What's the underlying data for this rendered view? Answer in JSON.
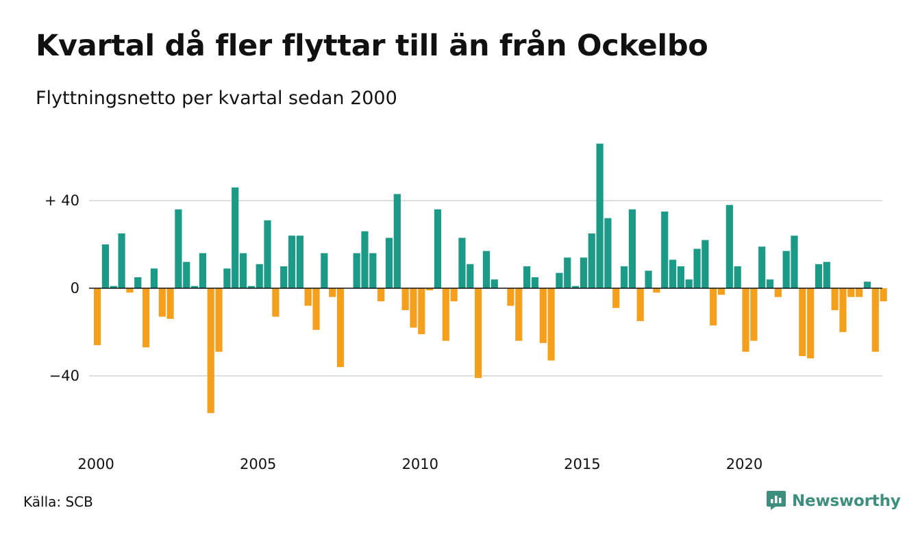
{
  "header": {
    "title": "Kvartal då fler flyttar till än från Ockelbo",
    "subtitle": "Flyttningsnetto per kvartal sedan 2000"
  },
  "footer": {
    "source": "Källa: SCB",
    "brand": "Newsworthy",
    "brand_icon": "newsworthy-logo-icon"
  },
  "colors": {
    "positive": "#1b9a87",
    "negative": "#f5a01d",
    "grid": "#dddddd",
    "text": "#111111",
    "brand": "#3c8f7c"
  },
  "chart_data": {
    "type": "bar",
    "title": "Kvartal då fler flyttar till än från Ockelbo",
    "subtitle": "Flyttningsnetto per kvartal sedan 2000",
    "x_start": "2000 Q1",
    "x_tick_labels": [
      "2000",
      "2005",
      "2010",
      "2015",
      "2020"
    ],
    "y_ticks": [
      40,
      0,
      -40
    ],
    "y_tick_labels": [
      "+ 40",
      "0",
      "−40"
    ],
    "ylim": [
      -70,
      75
    ],
    "grid": true,
    "legend": "none",
    "categories": [
      "2000 Q1",
      "2000 Q2",
      "2000 Q3",
      "2000 Q4",
      "2001 Q1",
      "2001 Q2",
      "2001 Q3",
      "2001 Q4",
      "2002 Q1",
      "2002 Q2",
      "2002 Q3",
      "2002 Q4",
      "2003 Q1",
      "2003 Q2",
      "2003 Q3",
      "2003 Q4",
      "2004 Q1",
      "2004 Q2",
      "2004 Q3",
      "2004 Q4",
      "2005 Q1",
      "2005 Q2",
      "2005 Q3",
      "2005 Q4",
      "2006 Q1",
      "2006 Q2",
      "2006 Q3",
      "2006 Q4",
      "2007 Q1",
      "2007 Q2",
      "2007 Q3",
      "2007 Q4",
      "2008 Q1",
      "2008 Q2",
      "2008 Q3",
      "2008 Q4",
      "2009 Q1",
      "2009 Q2",
      "2009 Q3",
      "2009 Q4",
      "2010 Q1",
      "2010 Q2",
      "2010 Q3",
      "2010 Q4",
      "2011 Q1",
      "2011 Q2",
      "2011 Q3",
      "2011 Q4",
      "2012 Q1",
      "2012 Q2",
      "2012 Q3",
      "2012 Q4",
      "2013 Q1",
      "2013 Q2",
      "2013 Q3",
      "2013 Q4",
      "2014 Q1",
      "2014 Q2",
      "2014 Q3",
      "2014 Q4",
      "2015 Q1",
      "2015 Q2",
      "2015 Q3",
      "2015 Q4",
      "2016 Q1",
      "2016 Q2",
      "2016 Q3",
      "2016 Q4",
      "2017 Q1",
      "2017 Q2",
      "2017 Q3",
      "2017 Q4",
      "2018 Q1",
      "2018 Q2",
      "2018 Q3",
      "2018 Q4",
      "2019 Q1",
      "2019 Q2",
      "2019 Q3",
      "2019 Q4",
      "2020 Q1",
      "2020 Q2",
      "2020 Q3",
      "2020 Q4",
      "2021 Q1",
      "2021 Q2",
      "2021 Q3",
      "2021 Q4",
      "2022 Q1",
      "2022 Q2",
      "2022 Q3",
      "2022 Q4",
      "2023 Q1",
      "2023 Q2",
      "2023 Q3",
      "2023 Q4",
      "2024 Q1",
      "2024 Q2"
    ],
    "values": [
      -26,
      20,
      1,
      25,
      -2,
      5,
      -27,
      9,
      -13,
      -14,
      36,
      12,
      1,
      16,
      -57,
      -29,
      9,
      46,
      16,
      1,
      11,
      31,
      -13,
      10,
      24,
      24,
      -8,
      -19,
      16,
      -4,
      -36,
      0,
      16,
      26,
      16,
      -6,
      23,
      43,
      -10,
      -18,
      -21,
      -1,
      36,
      -24,
      -6,
      23,
      11,
      -41,
      17,
      4,
      0,
      -8,
      -24,
      10,
      5,
      -25,
      -33,
      7,
      14,
      1,
      14,
      25,
      66,
      32,
      -9,
      10,
      36,
      -15,
      8,
      -2,
      35,
      13,
      10,
      4,
      18,
      22,
      -17,
      -3,
      38,
      10,
      -29,
      -24,
      19,
      4,
      -4,
      17,
      24,
      -31,
      -32,
      11,
      12,
      -10,
      -20,
      -4,
      -4,
      3,
      -29,
      -6
    ]
  }
}
